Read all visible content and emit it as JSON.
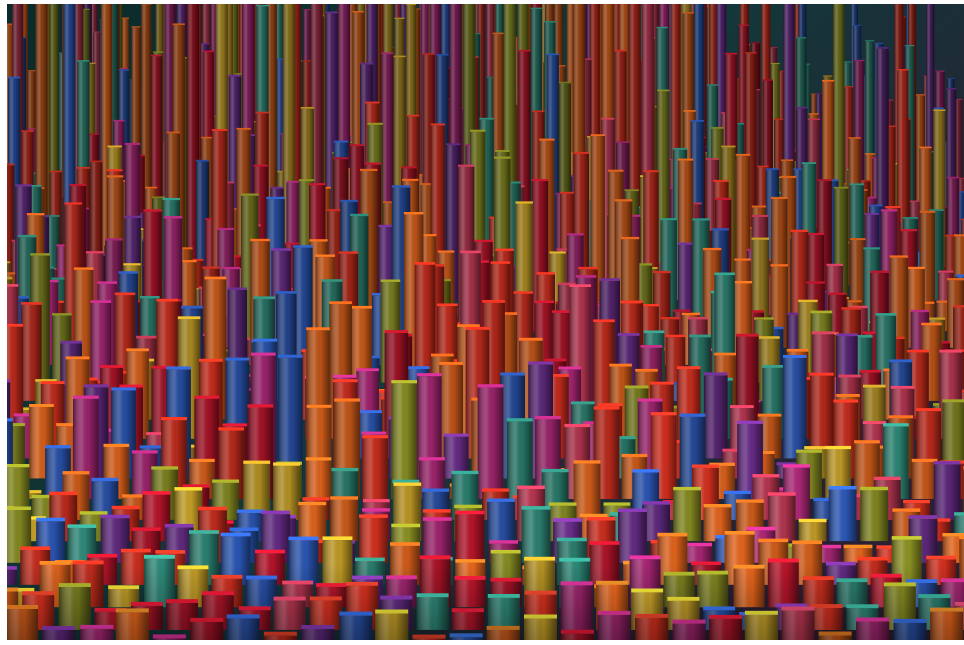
{
  "image": {
    "subject": "abstract-3d-bar-field",
    "palette": {
      "background_top": "#0b2a2a",
      "background_mid": "#12383a",
      "background_right": "#2a1f33",
      "warm_1": "#d9301f",
      "warm_2": "#e8661c",
      "warm_3": "#b8142a",
      "gold": "#c9a227",
      "olive": "#8a8f22",
      "teal": "#2e8b7a",
      "blue": "#2b58b8",
      "violet": "#6a2d8c",
      "magenta": "#b0287a",
      "rose": "#c93a58",
      "dark": "#1a1416"
    }
  }
}
